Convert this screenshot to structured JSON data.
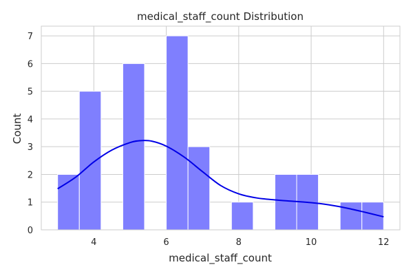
{
  "chart_data": {
    "type": "bar",
    "title": "medical_staff_count Distribution",
    "xlabel": "medical_staff_count",
    "ylabel": "Count",
    "xlim": [
      2.55,
      12.45
    ],
    "ylim": [
      0,
      7.35
    ],
    "xticks": [
      4,
      6,
      8,
      10,
      12
    ],
    "yticks": [
      0,
      1,
      2,
      3,
      4,
      5,
      6,
      7
    ],
    "grid": true,
    "bin_edges": [
      3.0,
      3.6,
      4.2,
      4.8,
      5.4,
      6.0,
      6.6,
      7.2,
      7.8,
      8.4,
      9.0,
      9.6,
      10.2,
      10.8,
      11.4,
      12.0
    ],
    "counts": [
      2,
      5,
      0,
      6,
      0,
      7,
      3,
      0,
      1,
      0,
      2,
      2,
      0,
      1,
      1
    ],
    "bar_color": "#7f7ffe",
    "kde": {
      "color": "#0000e6",
      "x": [
        3.0,
        3.5,
        4.0,
        4.5,
        5.0,
        5.3,
        5.6,
        6.0,
        6.5,
        7.0,
        7.5,
        8.0,
        8.5,
        9.0,
        9.5,
        10.0,
        10.5,
        11.0,
        11.5,
        12.0
      ],
      "y": [
        1.48,
        1.9,
        2.45,
        2.88,
        3.15,
        3.22,
        3.2,
        3.02,
        2.62,
        2.1,
        1.6,
        1.3,
        1.15,
        1.08,
        1.03,
        0.98,
        0.9,
        0.78,
        0.63,
        0.47
      ]
    }
  }
}
